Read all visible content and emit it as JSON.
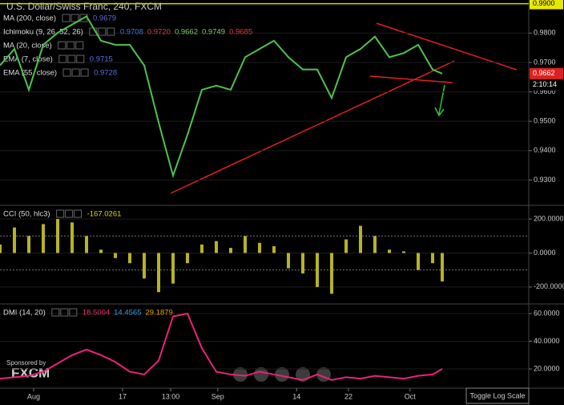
{
  "header": {
    "title": "U.S. Dollar/Swiss Franc, 240, FXCM",
    "countdown": "2:10:14"
  },
  "sponsor": {
    "caption": "Sponsored by",
    "name": "FXCM"
  },
  "toggle_button": "Toggle Log Scale",
  "chart_data": [
    {
      "type": "line",
      "name": "price",
      "indicators": [
        {
          "label": "MA (200, close)",
          "values": [
            "0.9679"
          ],
          "colors": [
            "#5a6be0"
          ]
        },
        {
          "label": "Ichimoku (9, 26, 52, 26)",
          "values": [
            "0.9708",
            "0.9720",
            "0.9662",
            "0.9749",
            "0.9685"
          ],
          "colors": [
            "#3d7bd9",
            "#e03a3a",
            "#7fc86a",
            "#7fc86a",
            "#e03a3a"
          ]
        },
        {
          "label": "MA (20, close)",
          "values": [],
          "colors": []
        },
        {
          "label": "EMA (7, close)",
          "values": [
            "0.9715"
          ],
          "colors": [
            "#5a6be0"
          ]
        },
        {
          "label": "EMA (55, close)",
          "values": [
            "0.9728"
          ],
          "colors": [
            "#5a6be0"
          ]
        }
      ],
      "x": [
        0,
        3,
        6,
        9,
        12,
        15,
        18,
        21,
        24,
        27,
        30,
        33,
        36,
        39,
        42,
        45,
        48,
        51,
        54,
        57,
        60,
        63,
        66,
        69,
        72,
        75,
        78,
        81,
        84,
        87,
        90,
        92
      ],
      "series": [
        {
          "name": "USD/CHF",
          "color": "#4fc24f",
          "values": [
            0.969,
            0.9746,
            0.9607,
            0.976,
            0.9801,
            0.9829,
            0.9857,
            0.9774,
            0.976,
            0.976,
            0.969,
            0.9496,
            0.9315,
            0.9454,
            0.9607,
            0.9621,
            0.9607,
            0.9718,
            0.9746,
            0.9774,
            0.9718,
            0.9676,
            0.9676,
            0.9579,
            0.9718,
            0.9746,
            0.9788,
            0.9718,
            0.9732,
            0.976,
            0.9676,
            0.9662
          ]
        }
      ],
      "last_price": 0.9662,
      "hline": {
        "value": 0.99,
        "label": "0.9900"
      },
      "xlim": [
        0,
        110
      ],
      "ylim": [
        0.92167,
        0.99125
      ],
      "yticks": [
        {
          "value": 0.98,
          "label": "0.9800"
        },
        {
          "value": 0.97,
          "label": "0.9700"
        },
        {
          "value": 0.96,
          "label": "0.9600"
        },
        {
          "value": 0.95,
          "label": "0.9500"
        },
        {
          "value": 0.94,
          "label": "0.9400"
        },
        {
          "value": 0.93,
          "label": "0.9300"
        }
      ]
    },
    {
      "type": "bar",
      "name": "cci",
      "indicators": [
        {
          "label": "CCI (50, hlc3)",
          "values": [
            "-167.0261"
          ],
          "colors": [
            "#d8d82a"
          ]
        }
      ],
      "x": [
        0,
        3,
        6,
        9,
        12,
        15,
        18,
        21,
        24,
        27,
        30,
        33,
        36,
        39,
        42,
        45,
        48,
        51,
        54,
        57,
        60,
        63,
        66,
        69,
        72,
        75,
        78,
        81,
        84,
        87,
        90,
        92
      ],
      "series": [
        {
          "name": "CCI",
          "color": "#b8b323",
          "values": [
            50,
            150,
            100,
            170,
            200,
            180,
            100,
            20,
            -30,
            -60,
            -150,
            -230,
            -180,
            -60,
            50,
            70,
            30,
            100,
            60,
            40,
            -90,
            -120,
            -200,
            -240,
            80,
            160,
            100,
            20,
            10,
            -100,
            -60,
            -167.0261
          ]
        }
      ],
      "bands": [
        100,
        -100
      ],
      "xlim": [
        0,
        110
      ],
      "ylim": [
        -295,
        276
      ],
      "yticks": [
        {
          "value": 200,
          "label": "200.0000"
        },
        {
          "value": 0,
          "label": "0.0000"
        },
        {
          "value": -200,
          "label": "-200.0000"
        }
      ]
    },
    {
      "type": "line",
      "name": "dmi",
      "indicators": [
        {
          "label": "DMI (14, 20)",
          "values": [
            "18.5004",
            "14.4565",
            "29.1879"
          ],
          "colors": [
            "#e0336f",
            "#3d9ad9",
            "#e0a000"
          ]
        }
      ],
      "x": [
        0,
        3,
        6,
        9,
        12,
        15,
        18,
        21,
        24,
        27,
        30,
        33,
        36,
        39,
        42,
        45,
        48,
        51,
        54,
        57,
        60,
        63,
        66,
        69,
        72,
        75,
        78,
        81,
        84,
        87,
        90,
        92
      ],
      "series": [
        {
          "name": "ADX",
          "color": "#e8237a",
          "values": [
            13,
            14,
            15,
            18,
            24,
            30,
            34,
            30,
            25,
            18,
            16,
            26,
            58,
            60,
            35,
            18,
            16,
            15,
            18,
            16,
            14,
            12,
            16,
            12,
            14,
            13,
            15,
            14,
            13,
            15,
            16,
            20
          ]
        }
      ],
      "xlim": [
        0,
        110
      ],
      "ylim": [
        6.1,
        66.4
      ],
      "yticks": [
        {
          "value": 60,
          "label": "60.0000"
        },
        {
          "value": 40,
          "label": "40.0000"
        },
        {
          "value": 20,
          "label": "20.0000"
        }
      ],
      "xticks": [
        {
          "value": 7,
          "label": "Aug"
        },
        {
          "value": 25.5,
          "label": "17"
        },
        {
          "value": 35.5,
          "label": "13:00"
        },
        {
          "value": 45.3,
          "label": "Sep"
        },
        {
          "value": 61.7,
          "label": "14"
        },
        {
          "value": 72.5,
          "label": "22"
        },
        {
          "value": 85.3,
          "label": "Oct"
        }
      ]
    }
  ]
}
